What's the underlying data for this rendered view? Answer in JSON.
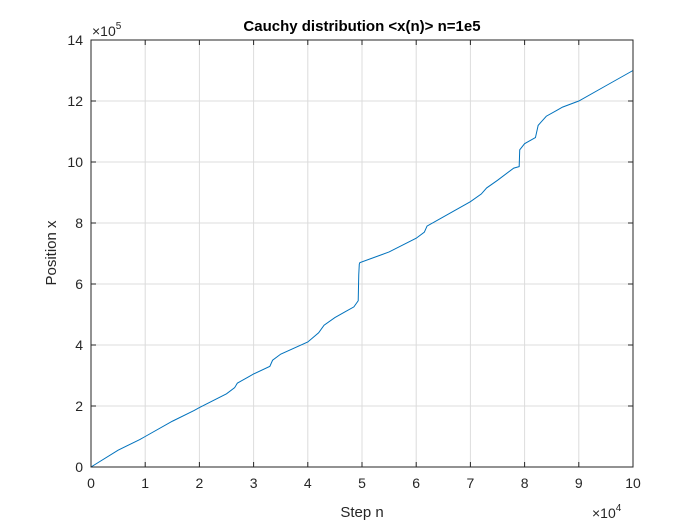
{
  "chart_data": {
    "type": "line",
    "title": "Cauchy distribution <x(n)> n=1e5",
    "xlabel": "Step n",
    "ylabel": "Position x",
    "xlim": [
      0,
      100000
    ],
    "ylim": [
      0,
      1400000
    ],
    "x_ticks": [
      0,
      10000,
      20000,
      30000,
      40000,
      50000,
      60000,
      70000,
      80000,
      90000,
      100000
    ],
    "y_ticks": [
      0,
      200000,
      400000,
      600000,
      800000,
      1000000,
      1200000,
      1400000
    ],
    "x_tick_labels": [
      "0",
      "1",
      "2",
      "3",
      "4",
      "5",
      "6",
      "7",
      "8",
      "9",
      "10"
    ],
    "y_tick_labels": [
      "0",
      "2",
      "4",
      "6",
      "8",
      "10",
      "12",
      "14"
    ],
    "x_exponent": {
      "base": "×10",
      "power": "4"
    },
    "y_exponent": {
      "base": "×10",
      "power": "5"
    },
    "grid": true,
    "color": "#0072BD",
    "series": [
      {
        "x": [
          0,
          5000,
          9000,
          10000,
          15000,
          19000,
          20000,
          25000,
          26500,
          27000,
          29000,
          30000,
          33000,
          33500,
          35000,
          40000,
          42000,
          43000,
          45000,
          47000,
          48500,
          49300,
          49400,
          49500,
          49600,
          55000,
          60000,
          61500,
          62000,
          65000,
          70000,
          72000,
          73000,
          75000,
          78000,
          79000,
          79100,
          80000,
          82000,
          82500,
          83000,
          84000,
          86000,
          87000,
          90000,
          95000,
          100000
        ],
        "y": [
          0,
          55000,
          90000,
          100000,
          150000,
          185000,
          195000,
          240000,
          260000,
          275000,
          295000,
          305000,
          330000,
          350000,
          370000,
          410000,
          440000,
          465000,
          490000,
          510000,
          525000,
          545000,
          630000,
          665000,
          670000,
          705000,
          750000,
          770000,
          790000,
          820000,
          870000,
          895000,
          915000,
          940000,
          980000,
          985000,
          1040000,
          1060000,
          1080000,
          1120000,
          1130000,
          1150000,
          1170000,
          1180000,
          1200000,
          1250000,
          1300000
        ]
      }
    ]
  }
}
